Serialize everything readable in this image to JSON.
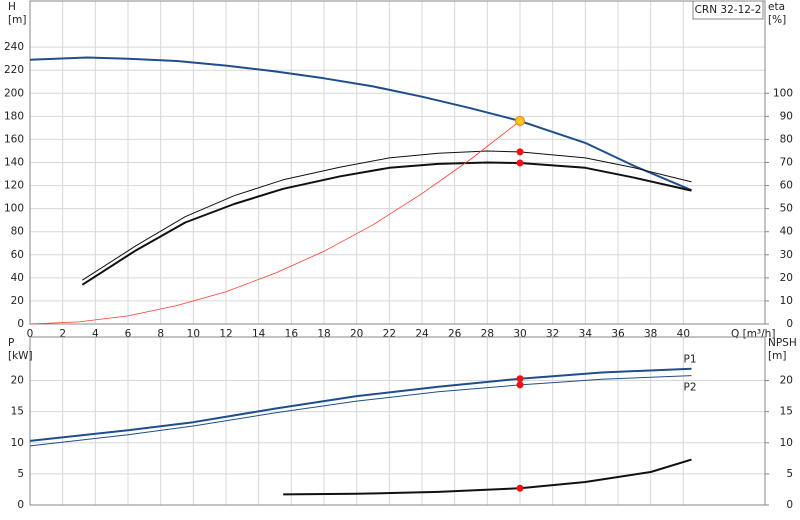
{
  "chart_data": [
    {
      "type": "line",
      "title": "CRN 32-12-2",
      "ylabel": "H",
      "yunit": "[m]",
      "y2label": "eta",
      "y2unit": "[%]",
      "xlabel": "Q [m³/h]",
      "xlim": [
        0,
        45
      ],
      "xticks": [
        0,
        2,
        4,
        6,
        8,
        10,
        12,
        14,
        16,
        18,
        20,
        22,
        24,
        26,
        28,
        30,
        32,
        34,
        36,
        38,
        40
      ],
      "ylim": [
        0,
        280
      ],
      "yticks": [
        0,
        20,
        40,
        60,
        80,
        100,
        120,
        140,
        160,
        180,
        200,
        220,
        240
      ],
      "y2lim": [
        0,
        140
      ],
      "y2ticks": [
        0,
        10,
        20,
        30,
        40,
        50,
        60,
        70,
        80,
        90,
        100
      ],
      "grid": true,
      "show_xtick_labels": true,
      "series": [
        {
          "color": "#1f4e8c",
          "width": 2,
          "x": [
            0,
            3.5,
            6,
            9,
            12,
            15,
            18,
            21,
            24,
            27,
            30,
            34,
            37,
            40.5
          ],
          "values": [
            229,
            231,
            230,
            228,
            224,
            219,
            213,
            206,
            197,
            187,
            176,
            157,
            137,
            116
          ]
        },
        {
          "color": "#111111",
          "width": 1,
          "axis": "y2",
          "x": [
            3.2,
            6.5,
            9.5,
            12.5,
            15.5,
            19,
            22,
            25,
            28,
            30,
            34,
            37,
            40.5
          ],
          "values": [
            19,
            34,
            46.5,
            55.6,
            62.5,
            68,
            72,
            74,
            75,
            74.6,
            72,
            67.7,
            61.6
          ]
        },
        {
          "color": "#111111",
          "width": 2,
          "axis": "y2",
          "x": [
            3.2,
            6.5,
            9.5,
            12.5,
            15.5,
            19,
            22,
            25,
            28,
            30,
            34,
            37,
            40.5
          ],
          "values": [
            17,
            32,
            44,
            52,
            58.6,
            64,
            67.7,
            69.4,
            70,
            69.8,
            67.7,
            63.4,
            57.8
          ]
        },
        {
          "color": "#ff3b30",
          "width": 0.8,
          "x": [
            0,
            3,
            6,
            9,
            12,
            15,
            18,
            21,
            24,
            27,
            30
          ],
          "values": [
            0,
            1.8,
            7,
            16,
            28,
            44,
            63,
            86,
            113,
            143,
            176
          ]
        }
      ],
      "points": [
        {
          "x": 30,
          "y": 176,
          "color": "#ffc22e"
        },
        {
          "x": 30,
          "y": 74.6,
          "axis": "y2",
          "color": "#ee1111"
        },
        {
          "x": 30,
          "y": 69.8,
          "axis": "y2",
          "color": "#ee1111"
        }
      ]
    },
    {
      "type": "line",
      "ylabel": "P",
      "yunit": "[kW]",
      "y2label": "NPSH",
      "y2unit": "[m]",
      "xlim": [
        0,
        45
      ],
      "xticks": [
        0,
        2,
        4,
        6,
        8,
        10,
        12,
        14,
        16,
        18,
        20,
        22,
        24,
        26,
        28,
        30,
        32,
        34,
        36,
        38,
        40
      ],
      "ylim": [
        0,
        27
      ],
      "yticks": [
        0,
        5,
        10,
        15,
        20
      ],
      "y2lim": [
        0,
        27
      ],
      "y2ticks": [
        0,
        5,
        10,
        15,
        20
      ],
      "grid": true,
      "show_xtick_labels": false,
      "series": [
        {
          "name": "P1",
          "color": "#1f4e8c",
          "width": 2,
          "x": [
            0,
            6,
            10,
            15,
            20,
            25,
            30,
            35,
            40.5
          ],
          "values": [
            10.3,
            12,
            13.3,
            15.5,
            17.5,
            19,
            20.3,
            21.3,
            21.9
          ]
        },
        {
          "name": "P2",
          "color": "#1f4e8c",
          "width": 1,
          "x": [
            0,
            6,
            10,
            15,
            20,
            25,
            30,
            35,
            40.5
          ],
          "values": [
            9.5,
            11.3,
            12.7,
            14.8,
            16.7,
            18.2,
            19.3,
            20.2,
            20.8
          ]
        },
        {
          "color": "#111111",
          "width": 2,
          "axis": "y2",
          "x": [
            15.5,
            20,
            25,
            30,
            34,
            38,
            40.5
          ],
          "values": [
            1.7,
            1.8,
            2.1,
            2.7,
            3.7,
            5.3,
            7.3
          ]
        }
      ],
      "points": [
        {
          "x": 30,
          "y": 20.3,
          "color": "#ee1111"
        },
        {
          "x": 30,
          "y": 19.3,
          "color": "#ee1111"
        },
        {
          "x": 30,
          "y": 2.7,
          "axis": "y2",
          "color": "#ee1111"
        }
      ]
    }
  ]
}
